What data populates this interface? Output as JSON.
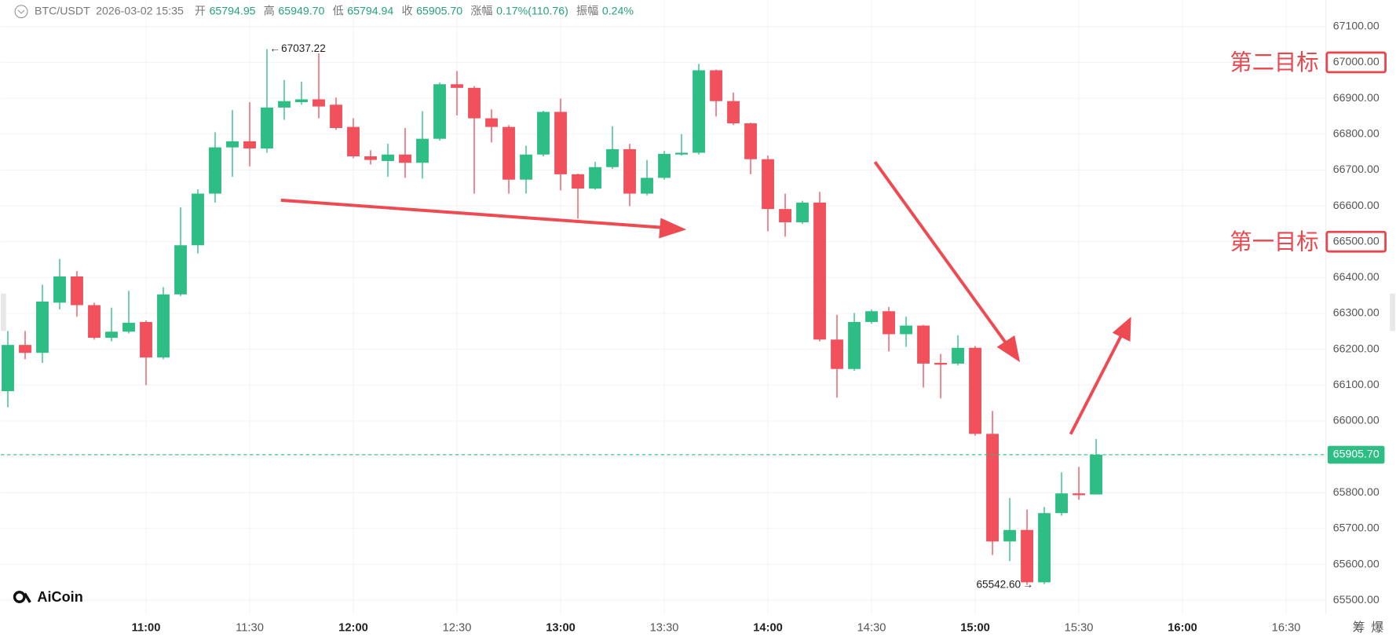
{
  "chart_data": {
    "type": "candlestick",
    "header": {
      "symbol": "BTC/USDT",
      "datetime": "2026-03-02 15:35",
      "fields": [
        {
          "label": "开",
          "value": "65794.95"
        },
        {
          "label": "高",
          "value": "65949.70"
        },
        {
          "label": "低",
          "value": "65794.94"
        },
        {
          "label": "收",
          "value": "65905.70"
        },
        {
          "label": "涨幅",
          "value": "0.17%(110.76)"
        },
        {
          "label": "振幅",
          "value": "0.24%"
        }
      ]
    },
    "open": [
      66083,
      66212,
      66190,
      66330,
      66403,
      66323,
      66232,
      66249,
      66276,
      66177,
      66353,
      66490,
      66634,
      66763,
      66780,
      66760,
      66874,
      66889,
      66897,
      66882,
      66820,
      66738,
      66725,
      66743,
      66720,
      66787,
      66939,
      66929,
      66844,
      66820,
      66673,
      66743,
      66862,
      66688,
      66648,
      66708,
      66758,
      66634,
      66678,
      66743,
      66748,
      66978,
      66892,
      66830,
      66730,
      66591,
      66554,
      66609,
      66227,
      66145,
      66276,
      66306,
      66242,
      66266,
      66162,
      66160,
      66204,
      65964,
      65664,
      65696,
      65550,
      65743,
      65798,
      65794.95
    ],
    "high": [
      66251,
      66251,
      66380,
      66452,
      66418,
      66330,
      66316,
      66363,
      66280,
      66373,
      66596,
      66646,
      66805,
      66867,
      66889,
      67037.22,
      66951,
      66946,
      67025,
      66902,
      66844,
      66755,
      66773,
      66817,
      66864,
      66944,
      66976,
      66934,
      66869,
      66825,
      66768,
      66865,
      66899,
      66690,
      66723,
      66822,
      66773,
      66728,
      66753,
      66800,
      66996,
      66980,
      66916,
      66832,
      66740,
      66634,
      66614,
      66639,
      66296,
      66301,
      66311,
      66318,
      66291,
      66268,
      66187,
      66239,
      66209,
      66028,
      65785,
      65753,
      65760,
      65857,
      65872,
      65949.7
    ],
    "low": [
      66038,
      66172,
      66162,
      66311,
      66291,
      66227,
      66222,
      66244,
      66100,
      66172,
      66348,
      66467,
      66609,
      66681,
      66710,
      66748,
      66840,
      66882,
      66844,
      66812,
      66733,
      66715,
      66681,
      66678,
      66676,
      66782,
      66852,
      66634,
      66777,
      66634,
      66634,
      66738,
      66643,
      66564,
      66645,
      66703,
      66599,
      66629,
      66673,
      66740,
      66743,
      66849,
      66825,
      66688,
      66529,
      66514,
      66549,
      66222,
      66065,
      66140,
      66271,
      66194,
      66207,
      66093,
      66063,
      66155,
      65959,
      65626,
      65609,
      65542.6,
      65545,
      65736,
      65780,
      65794.94
    ],
    "close": [
      66212,
      66190,
      66333,
      66403,
      66323,
      66232,
      66249,
      66274,
      66177,
      66353,
      66490,
      66634,
      66763,
      66780,
      66760,
      66874,
      66892,
      66897,
      66877,
      66817,
      66738,
      66728,
      66743,
      66720,
      66787,
      66939,
      66929,
      66844,
      66820,
      66673,
      66743,
      66862,
      66688,
      66648,
      66708,
      66758,
      66634,
      66678,
      66745,
      66748,
      66978,
      66892,
      66830,
      66730,
      66591,
      66554,
      66609,
      66227,
      66145,
      66276,
      66306,
      66242,
      66266,
      66160,
      66157,
      66204,
      65964,
      65664,
      65696,
      65550,
      65743,
      65798,
      65793,
      65905.7
    ],
    "up_color": "#2ebd85",
    "down_color": "#f0515d",
    "xlim": [
      -0.41,
      76.3
    ],
    "xticks": [
      {
        "value": 8,
        "label": "11:00"
      },
      {
        "value": 14,
        "label": "11:30"
      },
      {
        "value": 20,
        "label": "12:00"
      },
      {
        "value": 26,
        "label": "12:30"
      },
      {
        "value": 32,
        "label": "13:00"
      },
      {
        "value": 38,
        "label": "13:30"
      },
      {
        "value": 44,
        "label": "14:00"
      },
      {
        "value": 50,
        "label": "14:30"
      },
      {
        "value": 56,
        "label": "15:00"
      },
      {
        "value": 62,
        "label": "15:30"
      },
      {
        "value": 68,
        "label": "16:00"
      },
      {
        "value": 74,
        "label": "16:30"
      }
    ],
    "ylim": [
      65462,
      67174
    ],
    "yticks": [
      {
        "value": 65500,
        "label": "65500.00"
      },
      {
        "value": 65600,
        "label": "65600.00"
      },
      {
        "value": 65700,
        "label": "65700.00"
      },
      {
        "value": 65800,
        "label": "65800.00"
      },
      {
        "value": 65900,
        "label": "65900.00"
      },
      {
        "value": 66000,
        "label": "66000.00"
      },
      {
        "value": 66100,
        "label": "66100.00"
      },
      {
        "value": 66200,
        "label": "66200.00"
      },
      {
        "value": 66300,
        "label": "66300.00"
      },
      {
        "value": 66400,
        "label": "66400.00"
      },
      {
        "value": 66500,
        "label": "66500.00"
      },
      {
        "value": 66600,
        "label": "66600.00"
      },
      {
        "value": 66700,
        "label": "66700.00"
      },
      {
        "value": 66800,
        "label": "66800.00"
      },
      {
        "value": 66900,
        "label": "66900.00"
      },
      {
        "value": 67000,
        "label": "67000.00"
      },
      {
        "value": 67100,
        "label": "67100.00"
      }
    ],
    "grid": true,
    "price_line": {
      "value": 65905.7,
      "label": "65905.70"
    },
    "high_label": "67037.22",
    "low_label": "65542.60",
    "targets": [
      {
        "label": "第二目标",
        "value": 67000
      },
      {
        "label": "第一目标",
        "value": 66500
      }
    ],
    "logo": "AiCoin",
    "side_buttons": [
      "筹",
      "爆"
    ]
  }
}
